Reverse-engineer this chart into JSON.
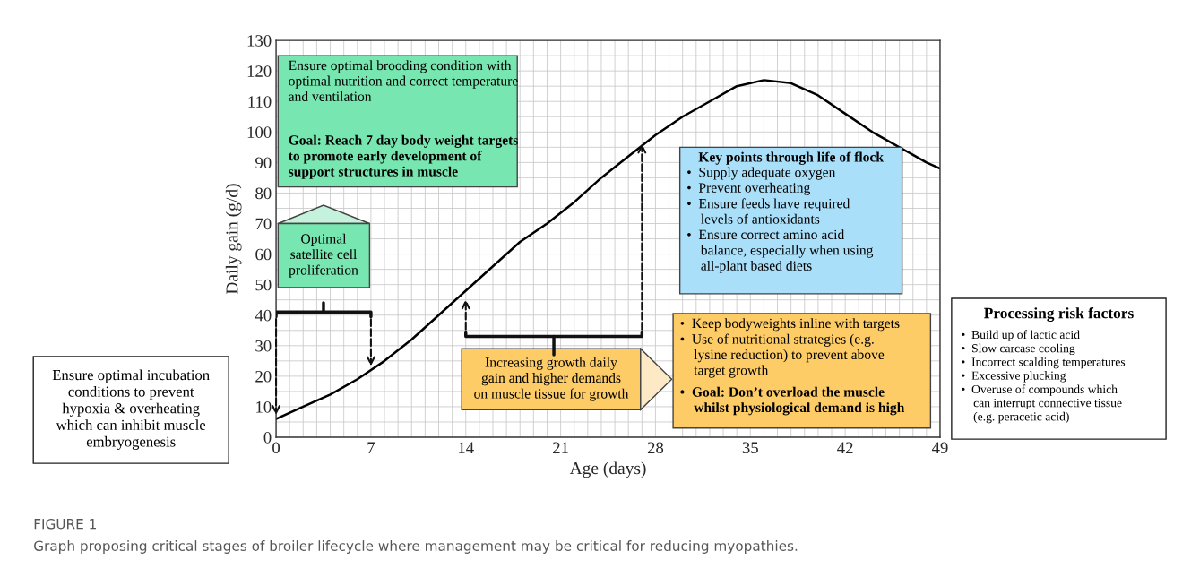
{
  "chart_data": {
    "type": "line",
    "xlabel": "Age (days)",
    "ylabel": "Daily gain (g/d)",
    "x": [
      0,
      2,
      4,
      6,
      8,
      10,
      12,
      14,
      16,
      18,
      20,
      22,
      24,
      26,
      28,
      30,
      32,
      34,
      36,
      38,
      40,
      42,
      44,
      46,
      48,
      49
    ],
    "series": [
      {
        "color": "#000000",
        "values": [
          6,
          10,
          14,
          19,
          25,
          32,
          40,
          48,
          56,
          64,
          70,
          77,
          85,
          92,
          99,
          105,
          110,
          115,
          117,
          116,
          112,
          106,
          100,
          95,
          90,
          88
        ]
      }
    ],
    "xlim": [
      0,
      49
    ],
    "ylim": [
      0,
      130
    ],
    "xticks": [
      0,
      7,
      14,
      21,
      28,
      35,
      42,
      49
    ],
    "yticks": [
      0,
      10,
      20,
      30,
      40,
      50,
      60,
      70,
      80,
      90,
      100,
      110,
      120,
      130
    ],
    "grid": true,
    "marker": "none",
    "line_style": "solid",
    "annotations": [
      "Ensure optimal brooding condition with\noptimal nutrition and correct temperature\nand ventilation",
      "Goal: Reach 7 day body weight targets\nto promote early development of\nsupport structures in muscle",
      "Optimal\nsatellite cell\nproliferation",
      "Increasing growth daily\ngain and higher demands\non muscle tissue for growth",
      "Key points through life of flock",
      "•  Supply adequate oxygen\n•  Prevent overheating\n•  Ensure feeds have required\n    levels of antioxidants\n•  Ensure correct amino acid\n    balance, especially when using\n    all-plant based diets",
      "•  Keep bodyweights inline with targets\n•  Use of nutritional strategies (e.g.\n    lysine reduction) to prevent above\n    target growth",
      "•  Goal: Don’t overload the muscle\n    whilst physiological demand is high",
      "Ensure optimal incubation\nconditions to prevent\nhypoxia & overheating\nwhich can inhibit muscle\nembryogenesis",
      "Processing risk factors",
      "•  Build up of lactic acid\n•  Slow carcase cooling\n•  Incorrect scalding temperatures\n•  Excessive plucking\n•  Overuse of compounds which\n    can interrupt connective tissue\n    (e.g. peracetic acid)",
      "FIGURE 1",
      "Graph proposing critical stages of broiler lifecycle where management may be critical for reducing myopathies."
    ]
  }
}
